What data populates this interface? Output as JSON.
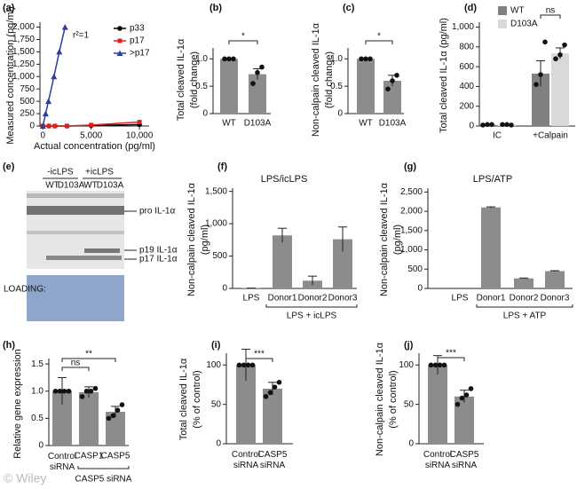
{
  "chart_data": [
    {
      "type": "line",
      "label": "(a)",
      "ylabel": [
        "Measured concentration (pg/ml)"
      ],
      "xlabel": "Actual concentration (pg/ml)",
      "xlim": [
        -300,
        11000
      ],
      "ylim": [
        0,
        2100
      ],
      "xticks": [
        0,
        {
          "value": 5000,
          "label": "5,000"
        },
        {
          "value": 10000,
          "label": "10,000"
        }
      ],
      "yticks": [
        0,
        250,
        500,
        750,
        {
          "value": 1000,
          "label": "1,000"
        },
        {
          "value": 1250,
          "label": "1,250"
        },
        {
          "value": 1500,
          "label": "1,500"
        },
        {
          "value": 1750,
          "label": "1,750"
        },
        {
          "value": 2000,
          "label": "2,000"
        }
      ],
      "annotation": "r²=1",
      "series": [
        {
          "name": "p33",
          "color": "#000000",
          "x": [
            0,
            625,
            1250,
            2500,
            5000,
            10000
          ],
          "values": [
            0,
            0,
            0,
            0,
            10,
            30
          ]
        },
        {
          "name": "p17",
          "color": "#e02020",
          "x": [
            0,
            625,
            1250,
            2500,
            5000,
            10000
          ],
          "values": [
            0,
            0,
            0,
            0,
            20,
            80
          ]
        },
        {
          "name": ">p17",
          "color": "#2a3f9e",
          "x": [
            0,
            290,
            580,
            1150,
            1700,
            2300
          ],
          "values": [
            0,
            250,
            500,
            1000,
            1500,
            2000
          ]
        }
      ]
    },
    {
      "type": "bar",
      "label": "(b)",
      "ylabel": [
        "Total cleaved IL-1α",
        "(fold change)"
      ],
      "categories": [
        "WT",
        "D103A"
      ],
      "values": [
        1.0,
        0.72
      ],
      "errors": [
        0.01,
        0.1
      ],
      "points": [
        [
          1,
          1,
          1
        ],
        [
          0.55,
          0.75,
          0.85
        ]
      ],
      "color": "#8c8c8c",
      "ylim": [
        0,
        1.2
      ],
      "yticks": [
        0,
        0.5,
        {
          "value": 1,
          "label": "1.0"
        }
      ],
      "significance": [
        "*"
      ]
    },
    {
      "type": "bar",
      "label": "(c)",
      "ylabel": [
        "Non-calpain cleaved IL-1α",
        "(fold change)"
      ],
      "categories": [
        "WT",
        "D103A"
      ],
      "values": [
        1.0,
        0.6
      ],
      "errors": [
        0.01,
        0.1
      ],
      "points": [
        [
          1,
          1,
          1
        ],
        [
          0.45,
          0.6,
          0.7
        ]
      ],
      "color": "#8c8c8c",
      "ylim": [
        0,
        1.2
      ],
      "yticks": [
        0,
        0.5,
        {
          "value": 1,
          "label": "1.0"
        }
      ],
      "significance": [
        "*"
      ]
    },
    {
      "type": "groupedbar",
      "label": "(d)",
      "ylabel": [
        "Total cleaved IL-1α (pg/ml)"
      ],
      "categories": [
        "IC",
        "+Calpain"
      ],
      "series": [
        {
          "name": "WT",
          "color": "#808080",
          "values": [
            13,
            530
          ],
          "errors": [
            5,
            130
          ],
          "points": [
            [
              10,
              15,
              15
            ],
            [
              420,
              520,
              850
            ]
          ]
        },
        {
          "name": "D103A",
          "color": "#d9d9d9",
          "values": [
            13,
            735
          ],
          "errors": [
            5,
            55
          ],
          "points": [
            [
              15,
              15,
              10
            ],
            [
              680,
              720,
              820
            ]
          ]
        }
      ],
      "ylim": [
        0,
        1050
      ],
      "yticks": [
        0,
        200,
        400,
        600,
        800,
        {
          "value": 1000,
          "label": "1,000"
        }
      ],
      "significance": [
        "ns"
      ]
    },
    {
      "type": "bar",
      "label": "(f)",
      "title": "LPS/icLPS",
      "ylabel": [
        "Non-calpain cleaved IL-1α",
        "(pg/ml)"
      ],
      "categories": [
        "LPS",
        "Donor1",
        "Donor2",
        "Donor3"
      ],
      "values": [
        5,
        820,
        120,
        760
      ],
      "errors": [
        0,
        110,
        70,
        190
      ],
      "color": "#8c8c8c",
      "group_label": "LPS + icLPS",
      "ylim": [
        0,
        1550
      ],
      "yticks": [
        0,
        500,
        {
          "value": 1000,
          "label": "1,000"
        },
        {
          "value": 1500,
          "label": "1,500"
        }
      ]
    },
    {
      "type": "bar",
      "label": "(g)",
      "title": "LPS/ATP",
      "ylabel": [
        "Non-calpain cleaved IL-1α",
        "(pg/ml)"
      ],
      "categories": [
        "LPS",
        "Donor1",
        "Donor2",
        "Donor3"
      ],
      "values": [
        0,
        2100,
        260,
        450
      ],
      "errors": [
        0,
        15,
        10,
        10
      ],
      "color": "#8c8c8c",
      "group_label": "LPS + ATP",
      "ylim": [
        0,
        2600
      ],
      "yticks": [
        0,
        500,
        {
          "value": 1000,
          "label": "1,000"
        },
        {
          "value": 1500,
          "label": "1,500"
        },
        {
          "value": 2000,
          "label": "2,000"
        },
        {
          "value": 2500,
          "label": "2,500"
        }
      ]
    },
    {
      "type": "bar",
      "label": "(h)",
      "ylabel": [
        "Relative gene expression"
      ],
      "categories": [
        "Control siRNA",
        "CASP1",
        "CASP5"
      ],
      "values": [
        1.0,
        0.98,
        0.62
      ],
      "errors": [
        0.25,
        0.1,
        0.1
      ],
      "points": [
        [
          1,
          1,
          1,
          1
        ],
        [
          0.9,
          1,
          1,
          1.05
        ],
        [
          0.5,
          0.55,
          0.65,
          0.75
        ]
      ],
      "color": "#8c8c8c",
      "group_label": "CASP5 siRNA",
      "ylim": [
        0,
        1.6
      ],
      "yticks": [
        0,
        0.5,
        {
          "value": 1,
          "label": "1.0"
        },
        1.5
      ],
      "significance": [
        "ns",
        "**"
      ]
    },
    {
      "type": "bar",
      "label": "(i)",
      "ylabel": [
        "Total cleaved IL-1α",
        "(% of control)"
      ],
      "categories": [
        "Control siRNA",
        "CASP5 siRNA"
      ],
      "values": [
        100,
        70
      ],
      "errors": [
        20,
        8
      ],
      "points": [
        [
          100,
          100,
          100,
          100
        ],
        [
          60,
          65,
          72,
          78
        ]
      ],
      "color": "#8c8c8c",
      "ylim": [
        0,
        115
      ],
      "yticks": [
        0,
        50,
        100
      ],
      "significance": [
        "***"
      ]
    },
    {
      "type": "bar",
      "label": "(j)",
      "ylabel": [
        "Non-calpain cleaved IL-1α",
        "(% of control)"
      ],
      "categories": [
        "Control siRNA",
        "CASP5 siRNA"
      ],
      "values": [
        100,
        60
      ],
      "errors": [
        12,
        8
      ],
      "points": [
        [
          100,
          100,
          100,
          100
        ],
        [
          50,
          58,
          62,
          70
        ]
      ],
      "color": "#8c8c8c",
      "ylim": [
        0,
        115
      ],
      "yticks": [
        0,
        50,
        100
      ],
      "significance": [
        "***"
      ]
    }
  ],
  "blot": {
    "label": "(e)",
    "conditions": [
      "-icLPS",
      "+icLPS"
    ],
    "lanes": [
      "WT",
      "D103A",
      "WT",
      "D103A"
    ],
    "bands": [
      "pro IL-1α",
      "p19 IL-1α",
      "p17 IL-1α"
    ],
    "loading": "LOADING:"
  },
  "watermark": "© Wiley"
}
